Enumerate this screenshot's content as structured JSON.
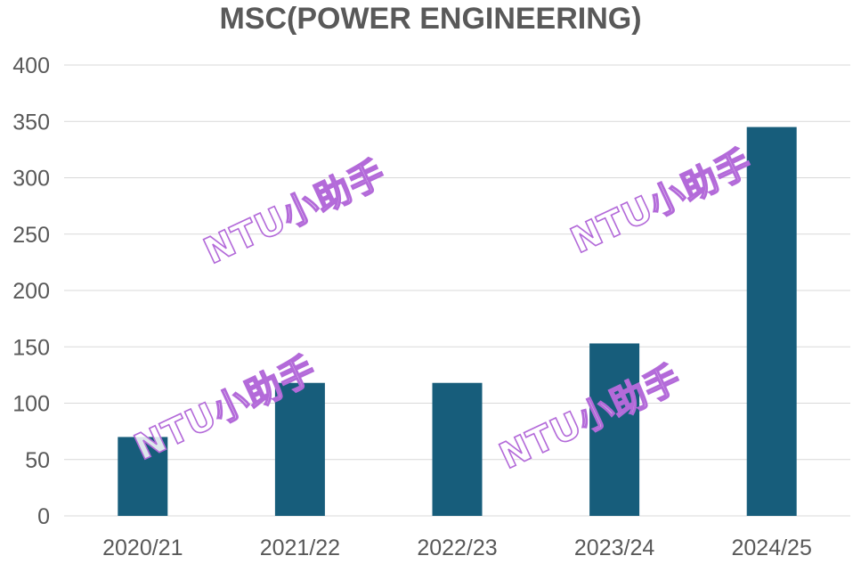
{
  "chart_data": {
    "type": "bar",
    "title": "MSC(POWER ENGINEERING)",
    "categories": [
      "2020/21",
      "2021/22",
      "2022/23",
      "2023/24",
      "2024/25"
    ],
    "values": [
      70,
      118,
      118,
      153,
      345
    ],
    "ylim": [
      0,
      400
    ],
    "yticks": [
      0,
      50,
      100,
      150,
      200,
      250,
      300,
      350,
      400
    ],
    "grid": true,
    "bar_color": "#175d7b",
    "grid_color": "#d9d9d9",
    "text_color": "#595959",
    "xlabel": "",
    "ylabel": ""
  },
  "watermarks": [
    "NTU小助手",
    "NTU小助手",
    "NTU小助手",
    "NTU小助手"
  ],
  "watermark_color": "#b36ad9"
}
